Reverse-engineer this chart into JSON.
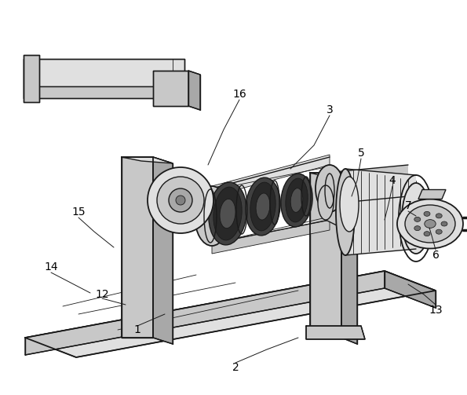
{
  "background_color": "#ffffff",
  "line_color": "#1a1a1a",
  "figsize": [
    5.95,
    5.03
  ],
  "dpi": 100,
  "gray_light": "#e0e0e0",
  "gray_mid": "#c8c8c8",
  "gray_dark": "#a8a8a8",
  "gray_very_dark": "#505050",
  "gray_body": "#d4d4d4"
}
